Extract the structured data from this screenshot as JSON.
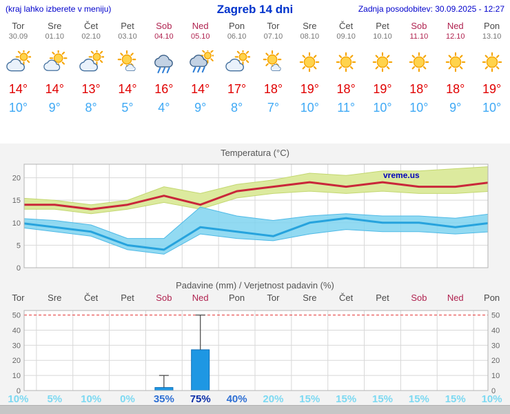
{
  "header": {
    "note": "(kraj lahko izberete v meniju)",
    "title": "Zagreb 14 dni",
    "updated": "Zadnja posodobitev: 30.09.2025 - 12:27"
  },
  "watermark": "vreme.us",
  "colors": {
    "header_blue": "#0000cc",
    "title_blue": "#0033cc",
    "weekday_gray": "#4a4a4a",
    "weekend_red": "#b02350",
    "tmax_red": "#e00000",
    "tmin_blue": "#3fa9f5",
    "tmax_line": "#c9273a",
    "tmin_line": "#27a3dd",
    "tmax_band": "#dcea9e",
    "tmin_band": "#7fd4f0",
    "bar_blue": "#1e97e3",
    "prob_low": "#7cd9f2",
    "prob_mid": "#2e6fd4",
    "prob_high": "#0c2fa8",
    "grid_gray": "#d8d8d8",
    "threshold_red": "#e23333"
  },
  "days": [
    {
      "name": "Tor",
      "date": "30.09",
      "weekend": false,
      "icon": "sun-behind-cloud",
      "tmax": "14°",
      "tmin": "10°"
    },
    {
      "name": "Sre",
      "date": "01.10",
      "weekend": false,
      "icon": "sun-and-cloud",
      "tmax": "14°",
      "tmin": "9°"
    },
    {
      "name": "Čet",
      "date": "02.10",
      "weekend": false,
      "icon": "sun-behind-cloud",
      "tmax": "13°",
      "tmin": "8°"
    },
    {
      "name": "Pet",
      "date": "03.10",
      "weekend": false,
      "icon": "sun-small-cloud",
      "tmax": "14°",
      "tmin": "5°"
    },
    {
      "name": "Sob",
      "date": "04.10",
      "weekend": true,
      "icon": "rain-cloud",
      "tmax": "16°",
      "tmin": "4°"
    },
    {
      "name": "Ned",
      "date": "05.10",
      "weekend": true,
      "icon": "rain-shower-sun",
      "tmax": "14°",
      "tmin": "9°"
    },
    {
      "name": "Pon",
      "date": "06.10",
      "weekend": false,
      "icon": "sun-behind-cloud",
      "tmax": "17°",
      "tmin": "8°"
    },
    {
      "name": "Tor",
      "date": "07.10",
      "weekend": false,
      "icon": "sun-small-cloud",
      "tmax": "18°",
      "tmin": "7°"
    },
    {
      "name": "Sre",
      "date": "08.10",
      "weekend": false,
      "icon": "sunny",
      "tmax": "19°",
      "tmin": "10°"
    },
    {
      "name": "Čet",
      "date": "09.10",
      "weekend": false,
      "icon": "sunny",
      "tmax": "18°",
      "tmin": "11°"
    },
    {
      "name": "Pet",
      "date": "10.10",
      "weekend": false,
      "icon": "sunny",
      "tmax": "19°",
      "tmin": "10°"
    },
    {
      "name": "Sob",
      "date": "11.10",
      "weekend": true,
      "icon": "sunny",
      "tmax": "18°",
      "tmin": "10°"
    },
    {
      "name": "Ned",
      "date": "12.10",
      "weekend": true,
      "icon": "sunny",
      "tmax": "18°",
      "tmin": "9°"
    },
    {
      "name": "Pon",
      "date": "13.10",
      "weekend": false,
      "icon": "sunny",
      "tmax": "19°",
      "tmin": "10°"
    }
  ],
  "chart_data": [
    {
      "type": "line",
      "title": "Temperatura (°C)",
      "categories": [
        "Tor 30.09",
        "Sre 01.10",
        "Čet 02.10",
        "Pet 03.10",
        "Sob 04.10",
        "Ned 05.10",
        "Pon 06.10",
        "Tor 07.10",
        "Sre 08.10",
        "Čet 09.10",
        "Pet 10.10",
        "Sob 11.10",
        "Ned 12.10",
        "Pon 13.10"
      ],
      "series": [
        {
          "name": "max_temp",
          "values": [
            14,
            14,
            13,
            14,
            16,
            14,
            17,
            18,
            19,
            18,
            19,
            18,
            18,
            19
          ]
        },
        {
          "name": "max_temp_range_upper",
          "values": [
            15.5,
            15,
            14,
            15,
            18,
            16.5,
            18.5,
            19.5,
            21,
            20.5,
            21.5,
            21.5,
            22,
            22.5
          ]
        },
        {
          "name": "max_temp_range_lower",
          "values": [
            13,
            13,
            12,
            13,
            14.5,
            13,
            15.5,
            16.5,
            17,
            16.5,
            17,
            16.5,
            16.5,
            17
          ]
        },
        {
          "name": "min_temp",
          "values": [
            10,
            9,
            8,
            5,
            4,
            9,
            8,
            7,
            10,
            11,
            10,
            10,
            9,
            10
          ]
        },
        {
          "name": "min_temp_range_upper",
          "values": [
            11,
            10.5,
            9.5,
            6.5,
            6.5,
            13.5,
            11.5,
            10.5,
            11.5,
            12,
            11.5,
            11.5,
            11,
            12
          ]
        },
        {
          "name": "min_temp_range_lower",
          "values": [
            9,
            8,
            7,
            4,
            3,
            7.5,
            6.5,
            6,
            7.5,
            8.5,
            8,
            8,
            7.5,
            8
          ]
        }
      ],
      "ylim": [
        0,
        23
      ],
      "yticks": [
        0,
        5,
        10,
        15,
        20
      ],
      "grid": true,
      "legend": "none"
    },
    {
      "type": "bar",
      "title": "Padavine (mm) / Verjetnost padavin (%)",
      "categories": [
        "Tor",
        "Sre",
        "Čet",
        "Pet",
        "Sob",
        "Ned",
        "Pon",
        "Tor",
        "Sre",
        "Čet",
        "Pet",
        "Sob",
        "Ned",
        "Pon"
      ],
      "precip_mm": [
        0,
        0,
        0,
        0,
        2,
        27,
        0,
        0,
        0,
        0,
        0,
        0,
        0,
        0
      ],
      "precip_max_mm": [
        0,
        0,
        0,
        0,
        10,
        50,
        0,
        0,
        0,
        0,
        0,
        0,
        0,
        0
      ],
      "probability_pct": [
        10,
        5,
        10,
        0,
        35,
        75,
        40,
        20,
        15,
        15,
        15,
        15,
        15,
        10
      ],
      "ylim": [
        0,
        53
      ],
      "yticks": [
        0,
        10,
        20,
        30,
        40,
        50
      ],
      "threshold": 50,
      "grid": true,
      "legend": "none"
    }
  ]
}
